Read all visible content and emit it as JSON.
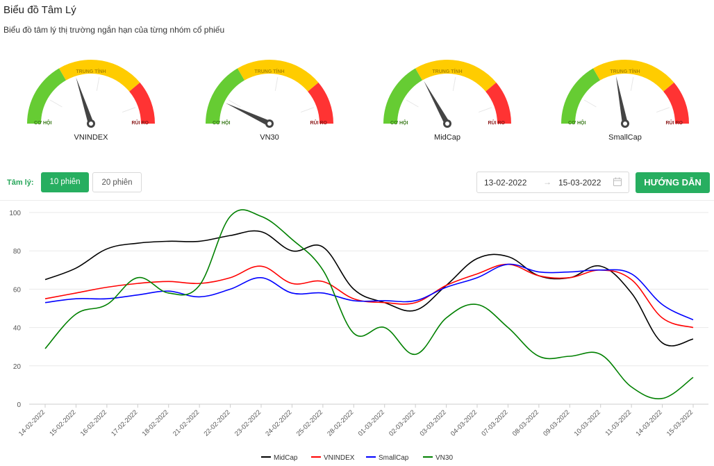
{
  "header": {
    "title": "Biểu đồ Tâm Lý",
    "subtitle": "Biểu đồ tâm lý thị trường ngắn hạn của từng nhóm cổ phiếu"
  },
  "gauge_labels": {
    "opportunity": "CƠ HỘI",
    "neutral": "TRUNG TÍNH",
    "risk": "RỦI RO"
  },
  "gauges": [
    {
      "name": "VNINDEX",
      "value": 40
    },
    {
      "name": "VN30",
      "value": 14
    },
    {
      "name": "MidCap",
      "value": 34
    },
    {
      "name": "SmallCap",
      "value": 44
    }
  ],
  "toolbar": {
    "label": "Tâm lý:",
    "option_10": "10 phiên",
    "option_20": "20 phiên",
    "date_from": "13-02-2022",
    "date_to": "15-03-2022",
    "guide_button": "HƯỚNG DẪN"
  },
  "colors": {
    "accent": "#27ae60",
    "green": "#66cc33",
    "yellow": "#ffcc00",
    "red": "#ff3333",
    "MidCap": "#000000",
    "VNINDEX": "#ff0000",
    "SmallCap": "#0000ff",
    "VN30": "#008000"
  },
  "chart_data": {
    "type": "line",
    "categories": [
      "14-02-2022",
      "15-02-2022",
      "16-02-2022",
      "17-02-2022",
      "18-02-2022",
      "21-02-2022",
      "22-02-2022",
      "23-02-2022",
      "24-02-2022",
      "25-02-2022",
      "28-02-2022",
      "01-03-2022",
      "02-03-2022",
      "03-03-2022",
      "04-03-2022",
      "07-03-2022",
      "08-03-2022",
      "09-03-2022",
      "10-03-2022",
      "11-03-2022",
      "14-03-2022",
      "15-03-2022"
    ],
    "ylim": [
      0,
      100
    ],
    "yticks": [
      0,
      20,
      40,
      60,
      80,
      100
    ],
    "series": [
      {
        "name": "MidCap",
        "values": [
          65,
          71,
          81,
          84,
          85,
          85,
          88,
          90,
          80,
          82,
          60,
          53,
          49,
          62,
          76,
          77,
          67,
          66,
          72,
          58,
          32,
          34
        ]
      },
      {
        "name": "VNINDEX",
        "values": [
          55,
          58,
          61,
          63,
          64,
          63,
          66,
          72,
          63,
          64,
          55,
          53,
          53,
          62,
          68,
          73,
          67,
          66,
          70,
          65,
          45,
          40
        ]
      },
      {
        "name": "SmallCap",
        "values": [
          53,
          55,
          55,
          57,
          59,
          56,
          60,
          66,
          58,
          58,
          54,
          54,
          54,
          61,
          66,
          73,
          69,
          69,
          70,
          68,
          52,
          44
        ]
      },
      {
        "name": "VN30",
        "values": [
          29,
          47,
          52,
          66,
          58,
          62,
          98,
          98,
          86,
          70,
          37,
          40,
          26,
          45,
          52,
          40,
          25,
          25,
          26,
          9,
          3,
          14
        ]
      }
    ],
    "legend_position": "bottom"
  }
}
